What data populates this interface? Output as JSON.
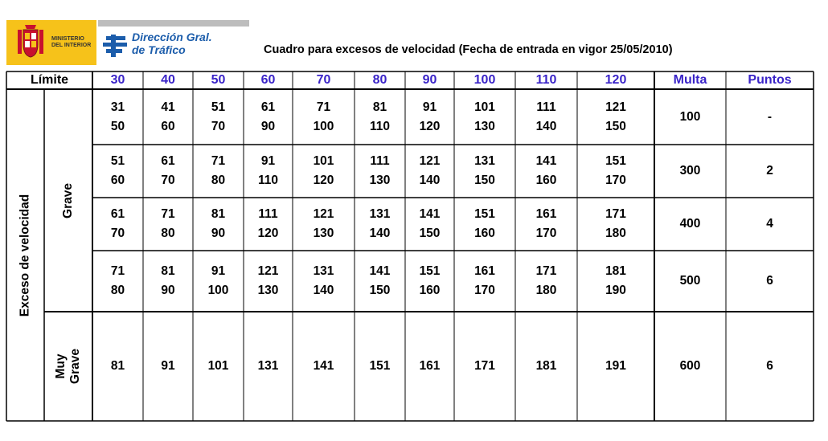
{
  "header": {
    "ministry_line1": "MINISTERIO",
    "ministry_line2": "DEL INTERIOR",
    "dgt_line1": "Dirección Gral.",
    "dgt_line2": "de Tráfico",
    "title": "Cuadro para excesos de velocidad (Fecha de entrada en vigor 25/05/2010)"
  },
  "table": {
    "limit_label": "Límite",
    "limits": [
      "30",
      "40",
      "50",
      "60",
      "70",
      "80",
      "90",
      "100",
      "110",
      "120"
    ],
    "fine_label": "Multa",
    "points_label": "Puntos",
    "side_label": "Exceso de velocidad",
    "grave_label": "Grave",
    "muy_grave_label_1": "Muy",
    "muy_grave_label_2": "Grave",
    "grave_rows": [
      {
        "ranges": [
          [
            "31",
            "50"
          ],
          [
            "41",
            "60"
          ],
          [
            "51",
            "70"
          ],
          [
            "61",
            "90"
          ],
          [
            "71",
            "100"
          ],
          [
            "81",
            "110"
          ],
          [
            "91",
            "120"
          ],
          [
            "101",
            "130"
          ],
          [
            "111",
            "140"
          ],
          [
            "121",
            "150"
          ]
        ],
        "fine": "100",
        "points": "-"
      },
      {
        "ranges": [
          [
            "51",
            "60"
          ],
          [
            "61",
            "70"
          ],
          [
            "71",
            "80"
          ],
          [
            "91",
            "110"
          ],
          [
            "101",
            "120"
          ],
          [
            "111",
            "130"
          ],
          [
            "121",
            "140"
          ],
          [
            "131",
            "150"
          ],
          [
            "141",
            "160"
          ],
          [
            "151",
            "170"
          ]
        ],
        "fine": "300",
        "points": "2"
      },
      {
        "ranges": [
          [
            "61",
            "70"
          ],
          [
            "71",
            "80"
          ],
          [
            "81",
            "90"
          ],
          [
            "111",
            "120"
          ],
          [
            "121",
            "130"
          ],
          [
            "131",
            "140"
          ],
          [
            "141",
            "150"
          ],
          [
            "151",
            "160"
          ],
          [
            "161",
            "170"
          ],
          [
            "171",
            "180"
          ]
        ],
        "fine": "400",
        "points": "4"
      },
      {
        "ranges": [
          [
            "71",
            "80"
          ],
          [
            "81",
            "90"
          ],
          [
            "91",
            "100"
          ],
          [
            "121",
            "130"
          ],
          [
            "131",
            "140"
          ],
          [
            "141",
            "150"
          ],
          [
            "151",
            "160"
          ],
          [
            "161",
            "170"
          ],
          [
            "171",
            "180"
          ],
          [
            "181",
            "190"
          ]
        ],
        "fine": "500",
        "points": "6"
      }
    ],
    "muy_grave_row": {
      "values": [
        "81",
        "91",
        "101",
        "131",
        "141",
        "151",
        "161",
        "171",
        "181",
        "191"
      ],
      "fine": "600",
      "points": "6"
    }
  }
}
